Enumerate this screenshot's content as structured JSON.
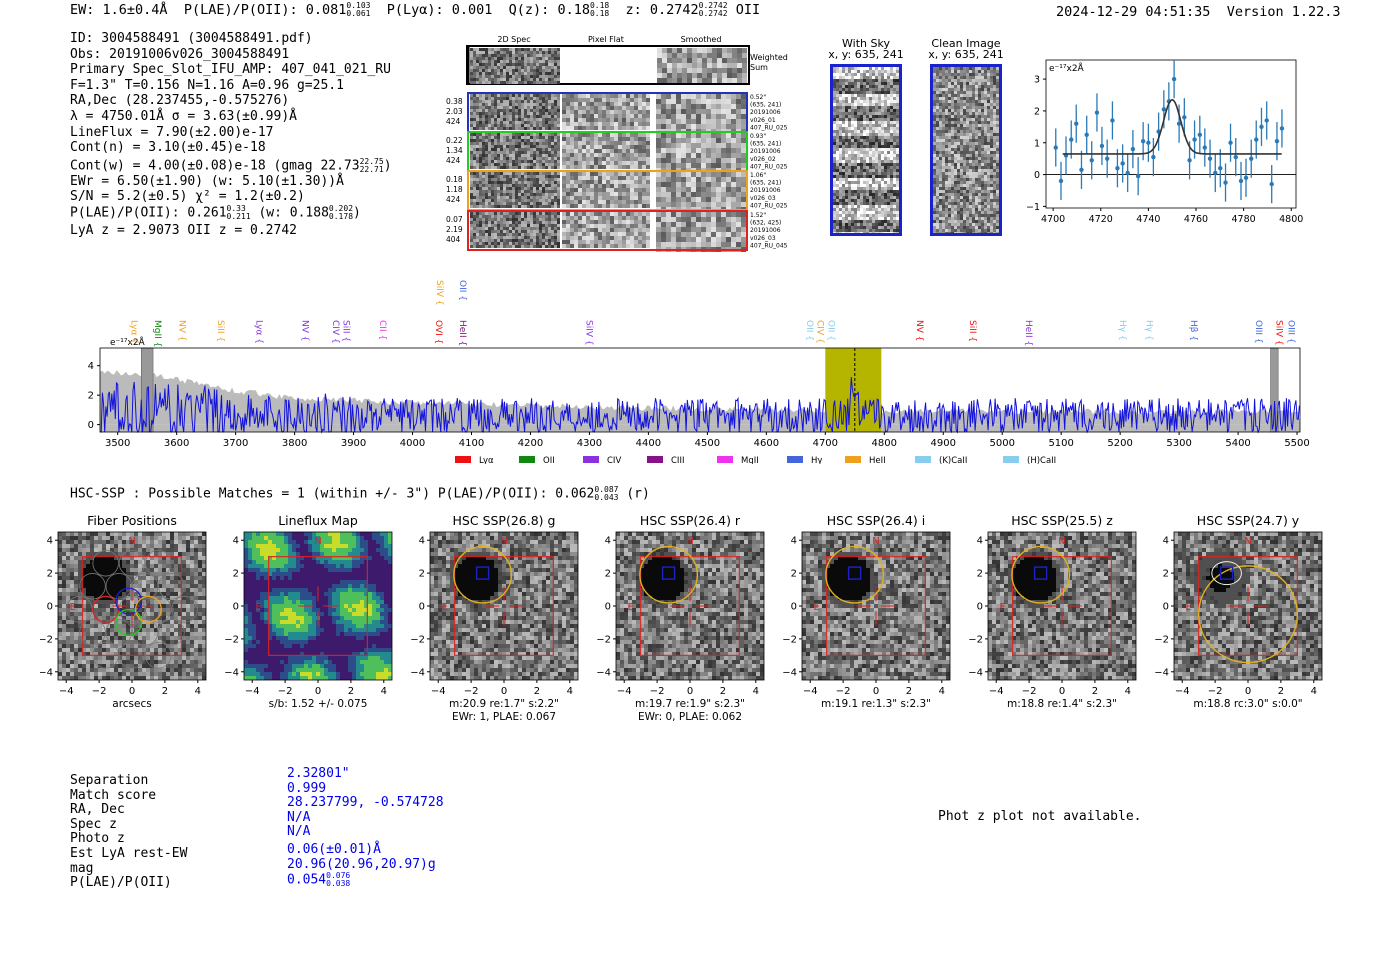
{
  "header": {
    "ew": "EW: 1.6±0.4Å",
    "plae_label": "P(LAE)/P(OII): 0.081",
    "plae_hi": "0.103",
    "plae_lo": "0.061",
    "plya": "P(Lyα): 0.001",
    "qz": "Q(z): 0.18",
    "qz_hi": "0.18",
    "qz_lo": "0.18",
    "z": "z: 0.2742",
    "z_hi": "0.2742",
    "z_lo": "0.2742",
    "z_line": "OII",
    "timestamp": "2024-12-29 04:51:35",
    "version": "Version 1.22.3"
  },
  "info": {
    "lines": [
      "ID: 3004588491 (3004588491.pdf)",
      "Obs: 20191006v026_3004588491",
      "Primary Spec_Slot_IFU_AMP: 407_041_021_RU",
      "F=1.3\"  T=0.156  N=1.16  A=0.96  g=25.1",
      "RA,Dec (28.237455,-0.575276)",
      "λ = 4750.01Å  σ = 3.63(±0.99)Å",
      "LineFlux = 7.90(±2.00)e-17",
      "Cont(n) = 3.10(±0.45)e-18"
    ],
    "contw": "Cont(w) = 4.00(±0.08)e-18 (gmag 22.73",
    "contw_hi": "22.75",
    "contw_lo": "22.71",
    "ewr": "EWr = 6.50(±1.90) (w: 5.10(±1.30))Å",
    "sn": "S/N = 5.2(±0.5)  χ² = 1.2(±0.2)",
    "plae2": "P(LAE)/P(OII): 0.261",
    "plae2_hi": "0.33",
    "plae2_lo": "0.211",
    "plae2_w": "(w: 0.188",
    "plae2_w_hi": "0.202",
    "plae2_w_lo": "0.178",
    "lya_z": "LyA z = 2.9073  OII z = 0.2742"
  },
  "cutouts": {
    "col_titles": [
      "2D Spec",
      "Pixel Flat",
      "Smoothed"
    ],
    "weighted_sum": [
      "Weighted",
      "Sum"
    ],
    "rows": [
      {
        "left": [
          "0.38",
          "2.03",
          "424"
        ],
        "right": [
          "0.52\"",
          "(635, 241)",
          "20191006",
          "v026_01",
          "407_RU_025"
        ],
        "color": "#2233bb"
      },
      {
        "left": [
          "0.22",
          "1.34",
          "424"
        ],
        "right": [
          "0.93\"",
          "(635, 241)",
          "20191006",
          "v026_02",
          "407_RU_025"
        ],
        "color": "#22cc22"
      },
      {
        "left": [
          "0.18",
          "1.18",
          "424"
        ],
        "right": [
          "1.06\"",
          "(635, 241)",
          "20191006",
          "v026_03",
          "407_RU_025"
        ],
        "color": "#f0a020"
      },
      {
        "left": [
          "0.07",
          "2.19",
          "404"
        ],
        "right": [
          "1.52\"",
          "(632, 425)",
          "20191006",
          "v026_03",
          "407_RU_045"
        ],
        "color": "#dd2222"
      }
    ]
  },
  "sky": {
    "with_sky_title": "With Sky",
    "with_sky_coords": "x, y: 635, 241",
    "clean_title": "Clean Image",
    "clean_coords": "x, y: 635, 241"
  },
  "chart_data": [
    {
      "type": "scatter",
      "name": "line-fit",
      "ylabel": "e⁻¹⁷x2Å",
      "xlim": [
        4697,
        4802
      ],
      "ylim": [
        -1.05,
        3.6
      ],
      "xticks": [
        4700,
        4720,
        4740,
        4760,
        4780,
        4800
      ],
      "yticks": [
        -1,
        0,
        1,
        2,
        3
      ],
      "points": [
        [
          4701.1,
          0.85,
          0.6
        ],
        [
          4703.3,
          -0.2,
          0.6
        ],
        [
          4705.4,
          0.6,
          0.6
        ],
        [
          4707.6,
          1.1,
          0.6
        ],
        [
          4709.7,
          1.6,
          0.6
        ],
        [
          4711.9,
          0.15,
          0.6
        ],
        [
          4714.1,
          1.25,
          0.6
        ],
        [
          4716.2,
          0.45,
          0.6
        ],
        [
          4718.4,
          1.95,
          0.6
        ],
        [
          4720.5,
          0.9,
          0.6
        ],
        [
          4722.7,
          0.5,
          0.6
        ],
        [
          4724.9,
          1.7,
          0.6
        ],
        [
          4727.0,
          0.2,
          0.6
        ],
        [
          4729.2,
          0.35,
          0.6
        ],
        [
          4731.3,
          0.05,
          0.6
        ],
        [
          4733.5,
          0.8,
          0.6
        ],
        [
          4735.7,
          -0.05,
          0.6
        ],
        [
          4737.8,
          1.05,
          0.6
        ],
        [
          4740.0,
          1.0,
          0.6
        ],
        [
          4742.1,
          0.55,
          0.6
        ],
        [
          4744.3,
          1.35,
          0.6
        ],
        [
          4746.5,
          2.05,
          0.6
        ],
        [
          4748.6,
          2.3,
          0.6
        ],
        [
          4750.8,
          3.0,
          0.6
        ],
        [
          4752.9,
          1.6,
          0.6
        ],
        [
          4755.1,
          1.8,
          0.6
        ],
        [
          4757.3,
          0.45,
          0.6
        ],
        [
          4759.4,
          1.1,
          0.6
        ],
        [
          4761.6,
          1.25,
          0.6
        ],
        [
          4763.7,
          0.85,
          0.6
        ],
        [
          4765.9,
          0.5,
          0.6
        ],
        [
          4768.1,
          0.05,
          0.6
        ],
        [
          4770.2,
          0.2,
          0.6
        ],
        [
          4772.4,
          -0.25,
          0.6
        ],
        [
          4774.5,
          1.0,
          0.6
        ],
        [
          4776.7,
          0.55,
          0.6
        ],
        [
          4778.9,
          -0.2,
          0.6
        ],
        [
          4781.0,
          -0.1,
          0.6
        ],
        [
          4783.2,
          0.5,
          0.6
        ],
        [
          4785.3,
          1.1,
          0.6
        ],
        [
          4787.5,
          1.5,
          0.6
        ],
        [
          4789.7,
          1.7,
          0.6
        ],
        [
          4791.8,
          -0.3,
          0.6
        ],
        [
          4794.0,
          1.05,
          0.6
        ],
        [
          4796.1,
          1.45,
          0.6
        ]
      ],
      "fit": {
        "continuum": 0.65,
        "amplitude": 1.7,
        "center": 4750.0,
        "sigma": 3.63,
        "range": [
          4704,
          4796
        ]
      }
    },
    {
      "type": "line",
      "name": "full-spectrum",
      "ylabel": "e⁻¹⁷x2Å",
      "xlim": [
        3470,
        5505
      ],
      "ylim": [
        -0.5,
        5.2
      ],
      "xticks": [
        3500,
        3600,
        3700,
        3800,
        3900,
        4000,
        4100,
        4200,
        4300,
        4400,
        4500,
        4600,
        4700,
        4800,
        4900,
        5000,
        5100,
        5200,
        5300,
        5400,
        5500
      ],
      "yticks": [
        0,
        2,
        4
      ],
      "highlight": [
        4700,
        4795
      ],
      "dashed_line": 4750,
      "masked": [
        [
          3540,
          3560
        ],
        [
          5455,
          5468
        ]
      ],
      "legend": [
        {
          "label": "Lyα",
          "color": "#ee1111"
        },
        {
          "label": "OII",
          "color": "#118811"
        },
        {
          "label": "CIV",
          "color": "#8833dd"
        },
        {
          "label": "CIII",
          "color": "#881188"
        },
        {
          "label": "MgII",
          "color": "#ee33ee"
        },
        {
          "label": "Hγ",
          "color": "#4466dd"
        },
        {
          "label": "HeII",
          "color": "#f0a020"
        },
        {
          "label": "(K)CaII",
          "color": "#88ccee"
        },
        {
          "label": "(H)CaII",
          "color": "#88ccee"
        }
      ],
      "line_labels": [
        {
          "label": "Lyα",
          "x": 3518,
          "color": "#f0a020"
        },
        {
          "label": "MgII",
          "x": 3558,
          "color": "#118811"
        },
        {
          "label": "NV",
          "x": 3600,
          "color": "#f0a020"
        },
        {
          "label": "SiII",
          "x": 3665,
          "color": "#f0a020"
        },
        {
          "label": "Lyα",
          "x": 3730,
          "color": "#8833dd"
        },
        {
          "label": "NV",
          "x": 3808,
          "color": "#8833dd"
        },
        {
          "label": "CIV",
          "x": 3860,
          "color": "#8833dd"
        },
        {
          "label": "SiII",
          "x": 3878,
          "color": "#8833dd"
        },
        {
          "label": "CII",
          "x": 3940,
          "color": "#ee33ee"
        },
        {
          "label": "SiIV",
          "x": 4036,
          "color": "#f0a020",
          "raised": true
        },
        {
          "label": "OII",
          "x": 4075,
          "color": "#4466dd",
          "raised": true
        },
        {
          "label": "OVI",
          "x": 4035,
          "color": "#ee1111"
        },
        {
          "label": "HeII",
          "x": 4075,
          "color": "#881188"
        },
        {
          "label": "SiIV",
          "x": 4290,
          "color": "#8833dd"
        },
        {
          "label": "OII",
          "x": 4664,
          "color": "#88ccee"
        },
        {
          "label": "CIV",
          "x": 4682,
          "color": "#f0a020"
        },
        {
          "label": "OII",
          "x": 4700,
          "color": "#88ccee"
        },
        {
          "label": "NV",
          "x": 4850,
          "color": "#ee1111"
        },
        {
          "label": "SiII",
          "x": 4940,
          "color": "#ee1111"
        },
        {
          "label": "HeII",
          "x": 5035,
          "color": "#8833dd"
        },
        {
          "label": "Hγ",
          "x": 5195,
          "color": "#88ccee"
        },
        {
          "label": "Hγ",
          "x": 5240,
          "color": "#88ccee"
        },
        {
          "label": "Hβ",
          "x": 5315,
          "color": "#4466dd"
        },
        {
          "label": "OIII",
          "x": 5425,
          "color": "#4466dd"
        },
        {
          "label": "SiIV",
          "x": 5460,
          "color": "#ee1111"
        },
        {
          "label": "OIII",
          "x": 5480,
          "color": "#4466dd"
        }
      ],
      "noise_amplitude": 1.2,
      "sky_envelope": [
        [
          3470,
          3.6
        ],
        [
          3560,
          3.4
        ],
        [
          3700,
          2.3
        ],
        [
          3800,
          1.8
        ],
        [
          4000,
          1.5
        ],
        [
          4300,
          1.2
        ],
        [
          4600,
          1.0
        ],
        [
          5000,
          0.9
        ],
        [
          5300,
          0.85
        ],
        [
          5505,
          0.9
        ]
      ]
    }
  ],
  "hsc": {
    "title": "HSC-SSP : Possible Matches = 1 (within +/- 3\")  P(LAE)/P(OII): 0.062",
    "title_hi": "0.087",
    "title_lo": "0.043",
    "title_suffix": "(r)",
    "panels": [
      {
        "title": "Fiber Positions",
        "cap1": "arcsecs",
        "cap2": ""
      },
      {
        "title": "Lineflux Map",
        "cap1": "s/b: 1.52 +/- 0.075",
        "cap2": ""
      },
      {
        "title": "HSC SSP(26.8) g",
        "cap1": "m:20.9  re:1.7\"  s:2.2\"",
        "cap2": "EWr: 1, PLAE: 0.067"
      },
      {
        "title": "HSC SSP(26.4) r",
        "cap1": "m:19.7  re:1.9\"  s:2.3\"",
        "cap2": "EWr: 0, PLAE: 0.062"
      },
      {
        "title": "HSC SSP(26.4) i",
        "cap1": "m:19.1  re:1.3\"  s:2.3\"",
        "cap2": ""
      },
      {
        "title": "HSC SSP(25.5) z",
        "cap1": "m:18.8  re:1.4\"  s:2.3\"",
        "cap2": ""
      },
      {
        "title": "HSC SSP(24.7) y",
        "cap1": "m:18.8  rc:3.0\"  s:0.0\"",
        "cap2": ""
      }
    ],
    "ticks": [
      "−4",
      "−2",
      "0",
      "2",
      "4"
    ],
    "north": "N",
    "east": "E"
  },
  "match": {
    "labels": [
      "Separation",
      "Match score",
      "RA, Dec",
      "Spec z",
      "Photo z",
      "Est LyA rest-EW",
      "mag",
      "P(LAE)/P(OII)"
    ],
    "values": [
      "2.32801\"",
      "0.999",
      "28.237799, -0.574728",
      "N/A",
      "N/A",
      "0.06(±0.01)Å",
      "20.96(20.96,20.97)g"
    ],
    "plae": "0.054",
    "plae_hi": "0.076",
    "plae_lo": "0.038"
  },
  "phot_z": "Phot z plot not available."
}
